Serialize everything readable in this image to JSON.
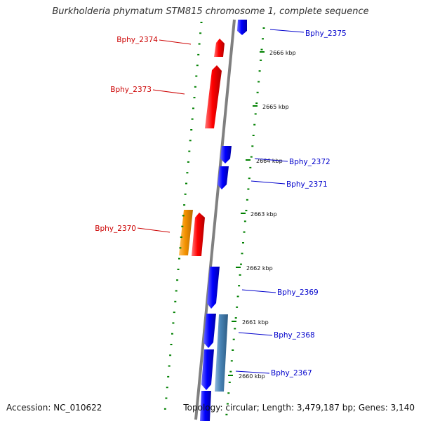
{
  "title": "Burkholderia phymatum STM815 chromosome 1, complete sequence",
  "footer": {
    "accession": "Accession: NC_010622",
    "summary": "Topology: circular; Length: 3,479,187 bp; Genes: 3,140"
  },
  "colors": {
    "forward_gene": "#ee0000",
    "reverse_gene": "#0000ee",
    "orange_gene": "#f08a00",
    "steelblue_gene": "#4682b4",
    "backbone": "#808080",
    "tick": "#008000"
  },
  "scale_labels": [
    "2666 kbp",
    "2665 kbp",
    "2664 kbp",
    "2663 kbp",
    "2662 kbp",
    "2661 kbp",
    "2660 kbp"
  ],
  "genes": [
    {
      "name": "Bphy_2375",
      "strand": "reverse",
      "color_key": "reverse_gene"
    },
    {
      "name": "Bphy_2374",
      "strand": "forward",
      "color_key": "forward_gene"
    },
    {
      "name": "Bphy_2373",
      "strand": "forward",
      "color_key": "forward_gene"
    },
    {
      "name": "Bphy_2372",
      "strand": "reverse",
      "color_key": "reverse_gene"
    },
    {
      "name": "Bphy_2371",
      "strand": "reverse",
      "color_key": "reverse_gene"
    },
    {
      "name": "Bphy_2370",
      "strand": "forward",
      "color_key": "forward_gene"
    },
    {
      "name": "Bphy_2369",
      "strand": "reverse",
      "color_key": "reverse_gene"
    },
    {
      "name": "Bphy_2368",
      "strand": "reverse",
      "color_key": "reverse_gene"
    },
    {
      "name": "Bphy_2367",
      "strand": "reverse",
      "color_key": "reverse_gene"
    }
  ],
  "unlabeled_features": [
    {
      "color_key": "orange_gene"
    },
    {
      "color_key": "steelblue_gene"
    },
    {
      "color_key": "reverse_gene"
    },
    {
      "color_key": "reverse_gene"
    }
  ]
}
